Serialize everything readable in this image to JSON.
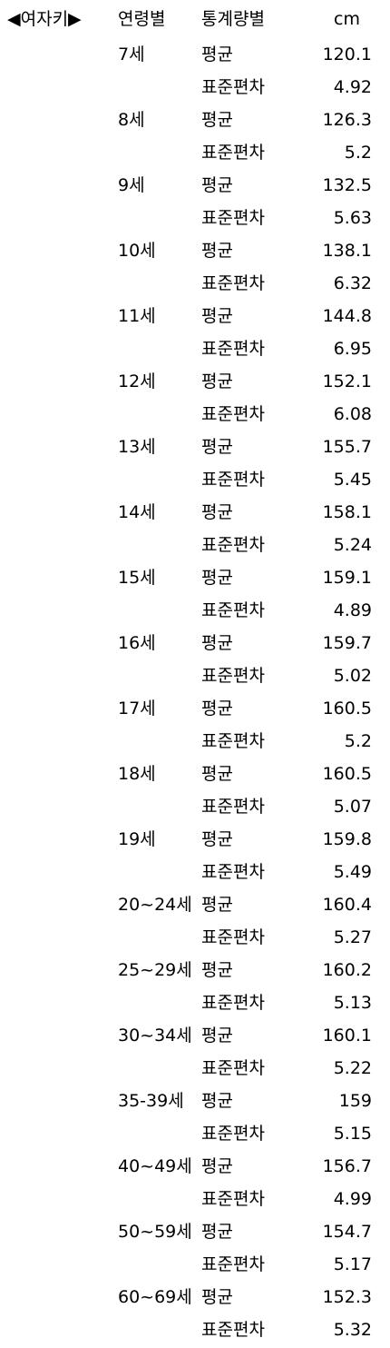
{
  "sidebar": {
    "label": "◀여자키▶"
  },
  "header": {
    "age_label": "연령별",
    "stat_label": "통계량별",
    "unit_label": "cm"
  },
  "rows": [
    {
      "age": "7세",
      "stat": "평균",
      "value": "120.1"
    },
    {
      "age": "",
      "stat": "표준편차",
      "value": "4.92"
    },
    {
      "age": "8세",
      "stat": "평균",
      "value": "126.3"
    },
    {
      "age": "",
      "stat": "표준편차",
      "value": "5.2"
    },
    {
      "age": "9세",
      "stat": "평균",
      "value": "132.5"
    },
    {
      "age": "",
      "stat": "표준편차",
      "value": "5.63"
    },
    {
      "age": "10세",
      "stat": "평균",
      "value": "138.1"
    },
    {
      "age": "",
      "stat": "표준편차",
      "value": "6.32"
    },
    {
      "age": "11세",
      "stat": "평균",
      "value": "144.8"
    },
    {
      "age": "",
      "stat": "표준편차",
      "value": "6.95"
    },
    {
      "age": "12세",
      "stat": "평균",
      "value": "152.1"
    },
    {
      "age": "",
      "stat": "표준편차",
      "value": "6.08"
    },
    {
      "age": "13세",
      "stat": "평균",
      "value": "155.7"
    },
    {
      "age": "",
      "stat": "표준편차",
      "value": "5.45"
    },
    {
      "age": "14세",
      "stat": "평균",
      "value": "158.1"
    },
    {
      "age": "",
      "stat": "표준편차",
      "value": "5.24"
    },
    {
      "age": "15세",
      "stat": "평균",
      "value": "159.1"
    },
    {
      "age": "",
      "stat": "표준편차",
      "value": "4.89"
    },
    {
      "age": "16세",
      "stat": "평균",
      "value": "159.7"
    },
    {
      "age": "",
      "stat": "표준편차",
      "value": "5.02"
    },
    {
      "age": "17세",
      "stat": "평균",
      "value": "160.5"
    },
    {
      "age": "",
      "stat": "표준편차",
      "value": "5.2"
    },
    {
      "age": "18세",
      "stat": "평균",
      "value": "160.5"
    },
    {
      "age": "",
      "stat": "표준편차",
      "value": "5.07"
    },
    {
      "age": "19세",
      "stat": "평균",
      "value": "159.8"
    },
    {
      "age": "",
      "stat": "표준편차",
      "value": "5.49"
    },
    {
      "age": "20~24세",
      "stat": "평균",
      "value": "160.4"
    },
    {
      "age": "",
      "stat": "표준편차",
      "value": "5.27"
    },
    {
      "age": "25~29세",
      "stat": "평균",
      "value": "160.2"
    },
    {
      "age": "",
      "stat": "표준편차",
      "value": "5.13"
    },
    {
      "age": "30~34세",
      "stat": "평균",
      "value": "160.1"
    },
    {
      "age": "",
      "stat": "표준편차",
      "value": "5.22"
    },
    {
      "age": "35-39세",
      "stat": "평균",
      "value": "159"
    },
    {
      "age": "",
      "stat": "표준편차",
      "value": "5.15"
    },
    {
      "age": "40~49세",
      "stat": "평균",
      "value": "156.7"
    },
    {
      "age": "",
      "stat": "표준편차",
      "value": "4.99"
    },
    {
      "age": "50~59세",
      "stat": "평균",
      "value": "154.7"
    },
    {
      "age": "",
      "stat": "표준편차",
      "value": "5.17"
    },
    {
      "age": "60~69세",
      "stat": "평균",
      "value": "152.3"
    },
    {
      "age": "",
      "stat": "표준편차",
      "value": "5.32"
    }
  ]
}
